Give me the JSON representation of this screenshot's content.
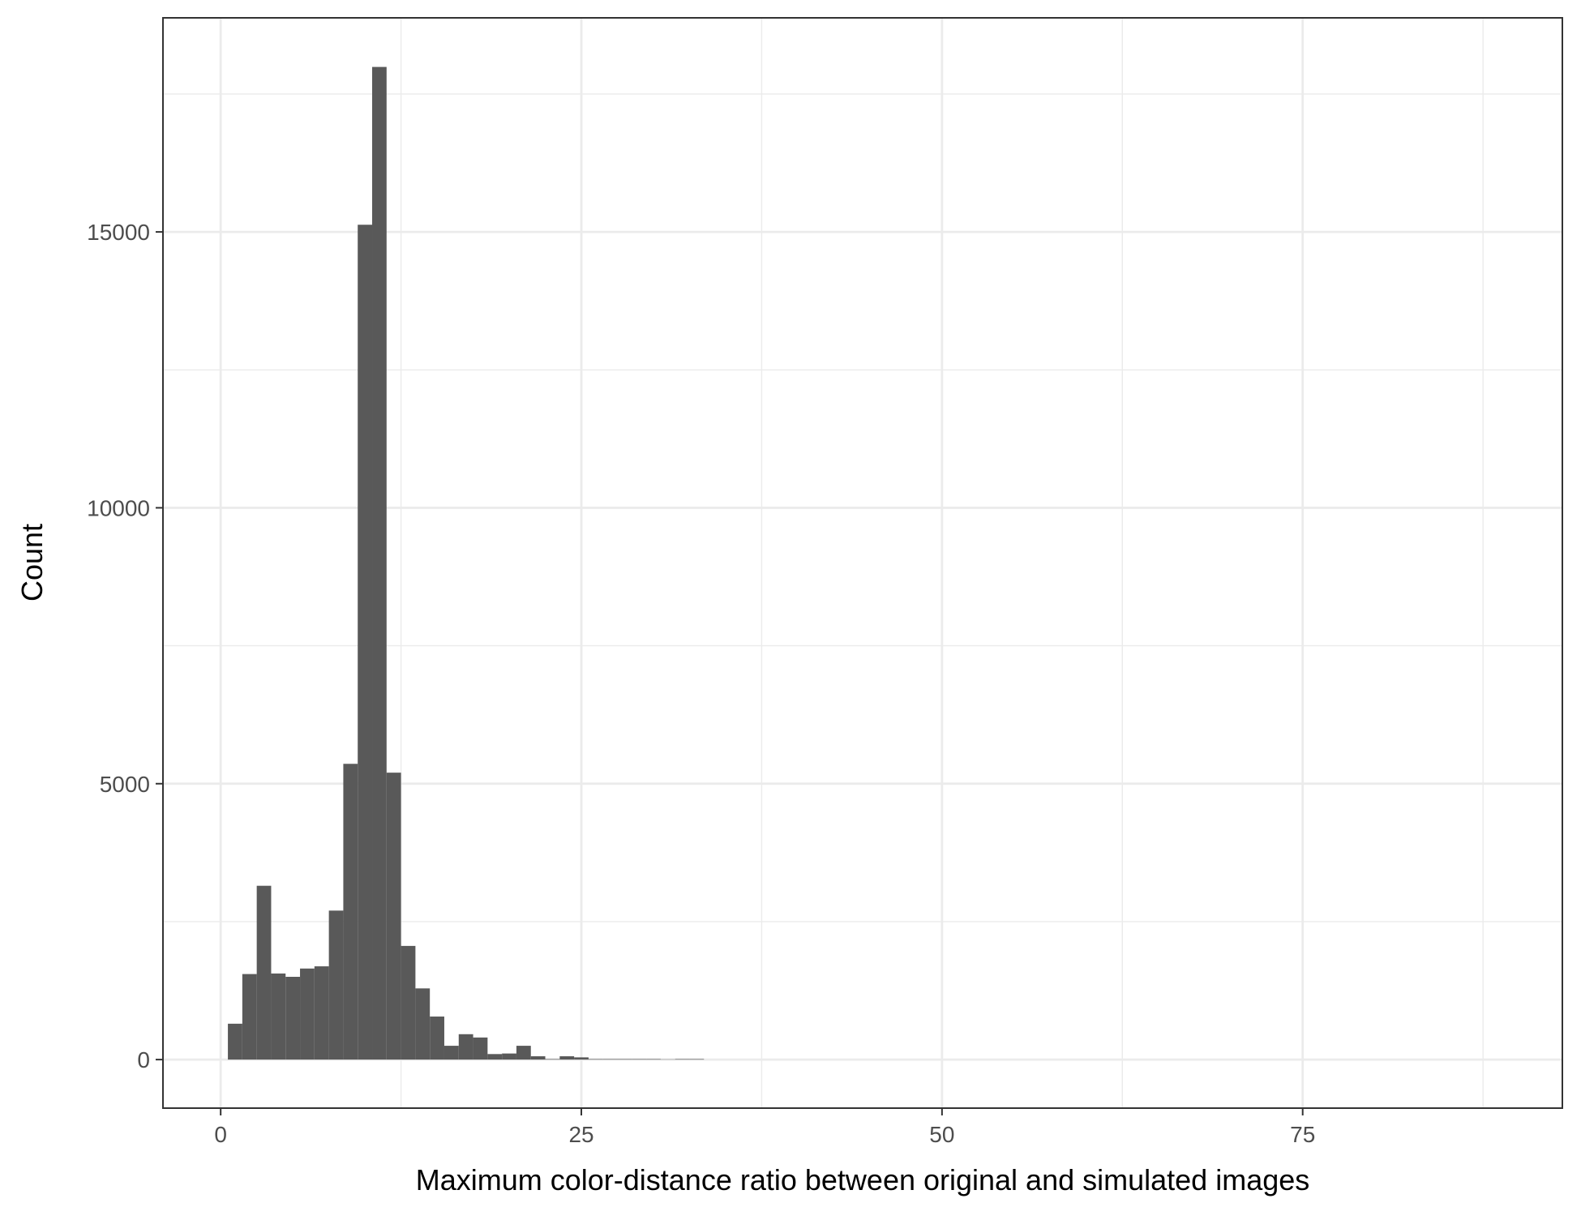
{
  "chart_data": {
    "type": "bar",
    "title": "",
    "xlabel": "Maximum color-distance ratio between original and simulated images",
    "ylabel": "Count",
    "xlim": [
      -4,
      93
    ],
    "ylim": [
      -880,
      18880
    ],
    "x_ticks": [
      0,
      25,
      50,
      75
    ],
    "x_tick_labels": [
      "0",
      "25",
      "50",
      "75"
    ],
    "y_ticks": [
      0,
      5000,
      10000,
      15000
    ],
    "y_tick_labels": [
      "0",
      "5000",
      "10000",
      "15000"
    ],
    "grid": true,
    "bin_width": 1,
    "bins": [
      {
        "x0": 0.5,
        "count": 650
      },
      {
        "x0": 1.5,
        "count": 1550
      },
      {
        "x0": 2.5,
        "count": 3150
      },
      {
        "x0": 3.5,
        "count": 1560
      },
      {
        "x0": 4.5,
        "count": 1500
      },
      {
        "x0": 5.5,
        "count": 1650
      },
      {
        "x0": 6.5,
        "count": 1690
      },
      {
        "x0": 7.5,
        "count": 2700
      },
      {
        "x0": 8.5,
        "count": 5360
      },
      {
        "x0": 9.5,
        "count": 15130
      },
      {
        "x0": 10.5,
        "count": 17990
      },
      {
        "x0": 11.5,
        "count": 5200
      },
      {
        "x0": 12.5,
        "count": 2060
      },
      {
        "x0": 13.5,
        "count": 1290
      },
      {
        "x0": 14.5,
        "count": 780
      },
      {
        "x0": 15.5,
        "count": 250
      },
      {
        "x0": 16.5,
        "count": 460
      },
      {
        "x0": 17.5,
        "count": 400
      },
      {
        "x0": 18.5,
        "count": 100
      },
      {
        "x0": 19.5,
        "count": 110
      },
      {
        "x0": 20.5,
        "count": 250
      },
      {
        "x0": 21.5,
        "count": 60
      },
      {
        "x0": 22.5,
        "count": 10
      },
      {
        "x0": 23.5,
        "count": 60
      },
      {
        "x0": 24.5,
        "count": 40
      },
      {
        "x0": 25.5,
        "count": 10
      },
      {
        "x0": 26.5,
        "count": 10
      },
      {
        "x0": 27.5,
        "count": 10
      },
      {
        "x0": 28.5,
        "count": 10
      },
      {
        "x0": 29.5,
        "count": 10
      },
      {
        "x0": 30.5,
        "count": 5
      },
      {
        "x0": 31.5,
        "count": 10
      },
      {
        "x0": 32.5,
        "count": 10
      }
    ],
    "bar_color": "#595959",
    "grid_color": "#ebebeb",
    "panel_border_color": "#333333"
  }
}
